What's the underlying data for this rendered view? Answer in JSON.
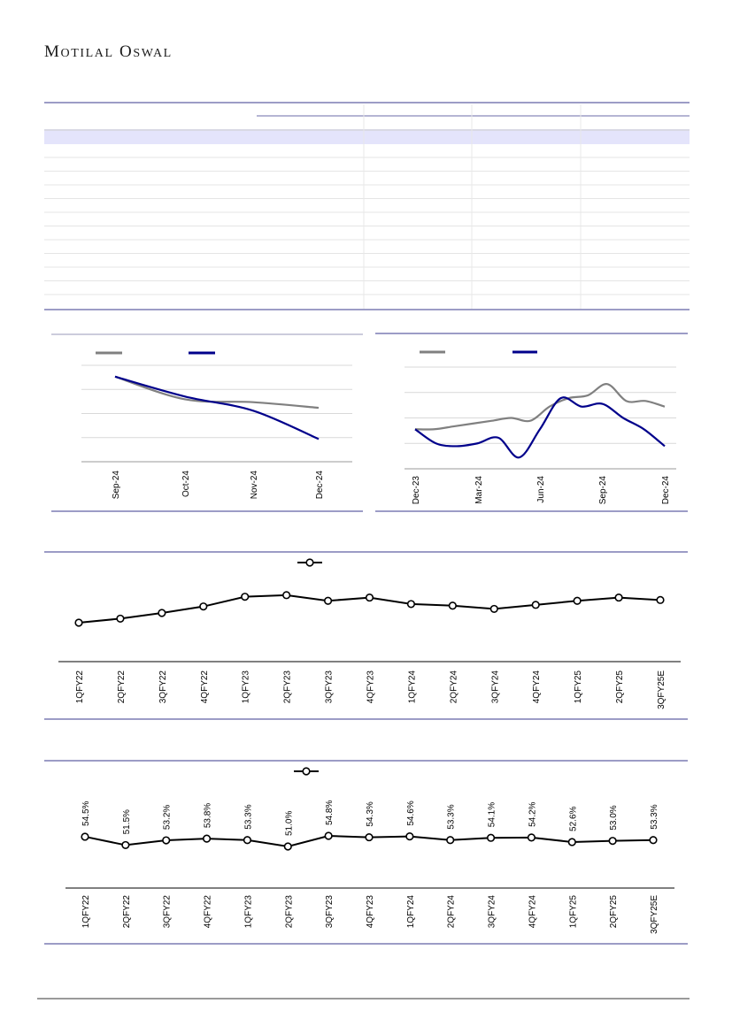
{
  "header": {
    "brand_first_cap": "M",
    "brand_first_rest": "OTILAL",
    "brand_second_cap": "O",
    "brand_second_rest": "SWAL"
  },
  "colors": {
    "navy": "#00008b",
    "gray_series": "#808080",
    "rule_blue": "#3a3a8c",
    "highlight_row": "#e4e4fb"
  },
  "table": {
    "row_count": 12
  },
  "chart_data": [
    {
      "type": "line",
      "x_ticks": [
        "Sep-24",
        "Oct-24",
        "Nov-24",
        "Dec-24"
      ],
      "y_grid_lines": 5,
      "legend": "top-left",
      "series": [
        {
          "color": "#808080",
          "values": [
            100,
            92,
            91,
            89
          ]
        },
        {
          "color": "#00008b",
          "values": [
            100,
            93,
            88,
            78
          ]
        }
      ]
    },
    {
      "type": "line",
      "x_ticks": [
        "Dec-23",
        "Mar-24",
        "Jun-24",
        "Sep-24",
        "Dec-24"
      ],
      "y_grid_lines": 5,
      "legend": "top-left",
      "series": [
        {
          "color": "#808080",
          "values": [
            100,
            100,
            101,
            102,
            103,
            104,
            103,
            108,
            111,
            112,
            116,
            110,
            110,
            108
          ]
        },
        {
          "color": "#00008b",
          "values": [
            100,
            95,
            94,
            95,
            97,
            90,
            100,
            111,
            108,
            109,
            104,
            100,
            94
          ]
        }
      ]
    },
    {
      "type": "line",
      "categories": [
        "1QFY22",
        "2QFY22",
        "3QFY22",
        "4QFY22",
        "1QFY23",
        "2QFY23",
        "3QFY23",
        "4QFY23",
        "1QFY24",
        "2QFY24",
        "3QFY24",
        "4QFY24",
        "1QFY25",
        "2QFY25",
        "3QFY25E"
      ],
      "legend": "top-center",
      "series": [
        {
          "values": [
            3.2,
            3.7,
            4.4,
            5.2,
            6.4,
            6.6,
            5.9,
            6.3,
            5.5,
            5.3,
            4.9,
            5.4,
            5.9,
            6.3,
            6.0
          ]
        }
      ]
    },
    {
      "type": "line",
      "categories": [
        "1QFY22",
        "2QFY22",
        "3QFY22",
        "4QFY22",
        "1QFY23",
        "2QFY23",
        "3QFY23",
        "4QFY23",
        "1QFY24",
        "2QFY24",
        "3QFY24",
        "4QFY24",
        "1QFY25",
        "2QFY25",
        "3QFY25E"
      ],
      "legend": "top-center",
      "series": [
        {
          "values": [
            54.5,
            51.5,
            53.2,
            53.8,
            53.3,
            51.0,
            54.8,
            54.3,
            54.6,
            53.3,
            54.1,
            54.2,
            52.6,
            53.0,
            53.3
          ],
          "labels": [
            "54.5%",
            "51.5%",
            "53.2%",
            "53.8%",
            "53.3%",
            "51.0%",
            "54.8%",
            "54.3%",
            "54.6%",
            "53.3%",
            "54.1%",
            "54.2%",
            "52.6%",
            "53.0%",
            "53.3%"
          ]
        }
      ]
    }
  ]
}
